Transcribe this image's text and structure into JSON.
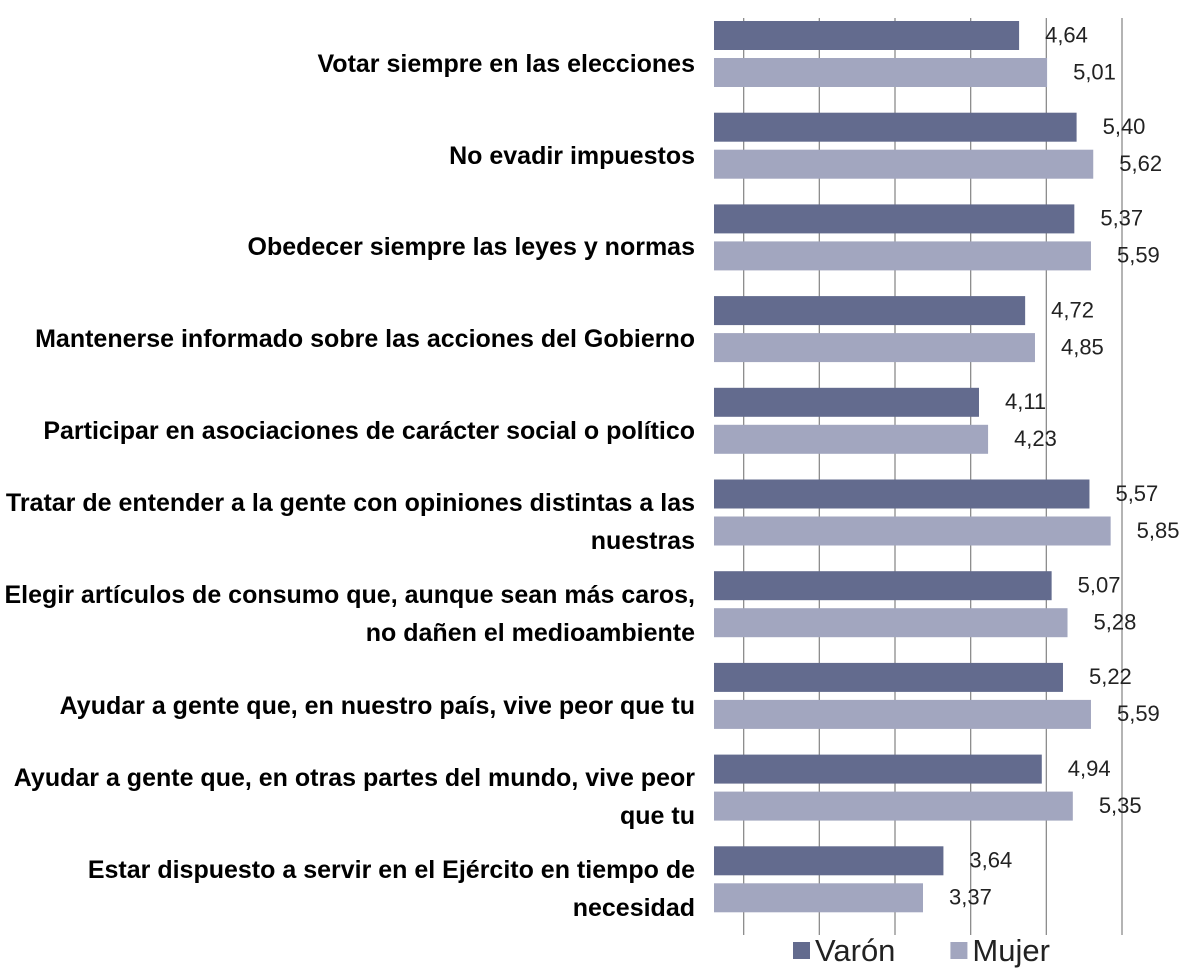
{
  "chart_data": {
    "type": "bar",
    "orientation": "horizontal",
    "categories": [
      "Votar siempre en las elecciones",
      "No evadir impuestos",
      "Obedecer siempre las leyes y normas",
      "Mantenerse informado sobre las acciones del Gobierno",
      "Participar en asociaciones de carácter social o político",
      "Tratar de entender a la gente con opiniones distintas a las nuestras",
      "Elegir artículos de consumo que, aunque sean más caros, no dañen el medioambiente",
      "Ayudar a gente que, en nuestro país, vive peor que tu",
      "Ayudar a gente que, en otras partes del mundo, vive peor que tu",
      "Estar dispuesto a servir en el Ejército en tiempo de necesidad"
    ],
    "series": [
      {
        "name": "Varón",
        "color": "#636b8e",
        "values": [
          4.64,
          5.4,
          5.37,
          4.72,
          4.11,
          5.57,
          5.07,
          5.22,
          4.94,
          3.64
        ],
        "value_labels": [
          "4,64",
          "5,40",
          "5,37",
          "4,72",
          "4,11",
          "5,57",
          "5,07",
          "5,22",
          "4,94",
          "3,64"
        ]
      },
      {
        "name": "Mujer",
        "color": "#a2a6bf",
        "values": [
          5.01,
          5.62,
          5.59,
          4.85,
          4.23,
          5.85,
          5.28,
          5.59,
          5.35,
          3.37
        ],
        "value_labels": [
          "5,01",
          "5,62",
          "5,59",
          "4,85",
          "4,23",
          "5,85",
          "5,28",
          "5,59",
          "5,35",
          "3,37"
        ]
      }
    ],
    "xlim": [
      0,
      6
    ],
    "xticks": [
      0,
      1,
      2,
      3,
      4,
      5,
      6
    ],
    "grid": true,
    "legend": "bottom"
  }
}
